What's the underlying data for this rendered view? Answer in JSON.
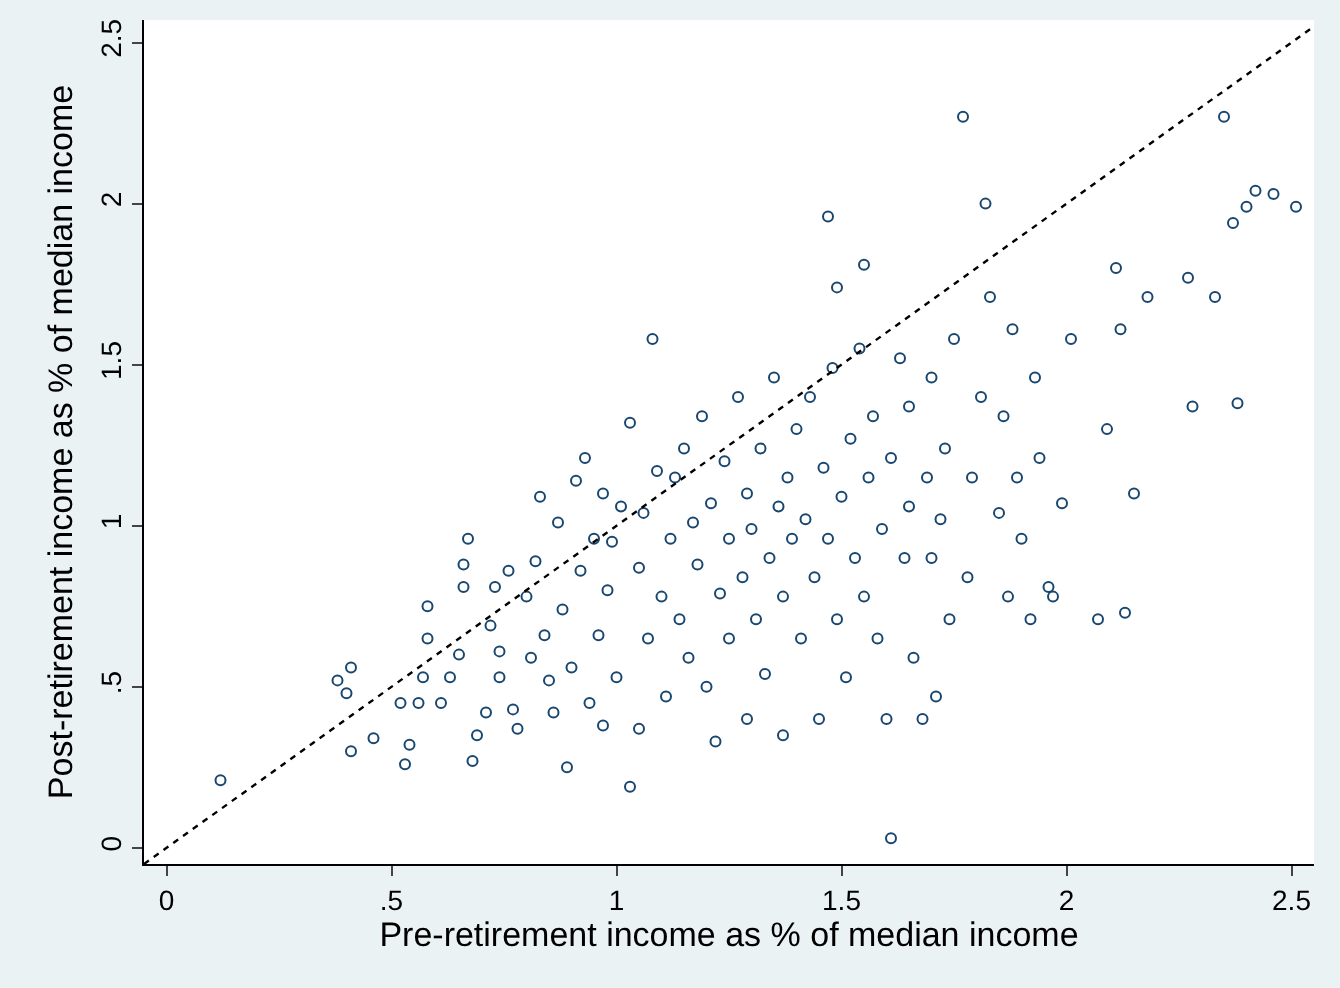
{
  "chart_data": {
    "type": "scatter",
    "xlabel": "Pre-retirement income as % of median income",
    "ylabel": "Post-retirement income as % of median income",
    "xlim": [
      -0.05,
      2.55
    ],
    "ylim": [
      -0.05,
      2.57
    ],
    "xticks": [
      0,
      {
        "value": 0.5,
        "label": ".5"
      },
      1,
      1.5,
      2,
      2.5
    ],
    "yticks": [
      0,
      {
        "value": 0.5,
        "label": ".5"
      },
      1,
      1.5,
      2,
      2.5
    ],
    "grid": false,
    "marker": "circle",
    "series": [
      {
        "color": "#1a476f",
        "x": [
          0.12,
          0.38,
          0.4,
          0.41,
          0.41,
          0.46,
          0.52,
          0.53,
          0.54,
          0.56,
          0.57,
          0.58,
          0.58,
          0.61,
          0.63,
          0.65,
          0.66,
          0.67,
          0.66,
          0.68,
          0.69,
          0.71,
          0.72,
          0.73,
          0.74,
          0.74,
          0.76,
          0.77,
          0.78,
          0.8,
          0.81,
          0.82,
          0.83,
          0.84,
          0.85,
          0.86,
          0.87,
          0.88,
          0.89,
          0.9,
          0.91,
          0.92,
          0.93,
          0.94,
          0.95,
          0.96,
          0.97,
          0.97,
          0.98,
          0.99,
          1.0,
          1.01,
          1.03,
          1.03,
          1.05,
          1.05,
          1.06,
          1.07,
          1.08,
          1.09,
          1.1,
          1.11,
          1.12,
          1.13,
          1.14,
          1.15,
          1.16,
          1.17,
          1.18,
          1.19,
          1.2,
          1.21,
          1.22,
          1.23,
          1.24,
          1.25,
          1.25,
          1.27,
          1.28,
          1.29,
          1.29,
          1.3,
          1.31,
          1.32,
          1.33,
          1.34,
          1.35,
          1.36,
          1.37,
          1.37,
          1.38,
          1.39,
          1.4,
          1.41,
          1.42,
          1.43,
          1.44,
          1.45,
          1.46,
          1.47,
          1.48,
          1.49,
          1.49,
          1.5,
          1.51,
          1.52,
          1.53,
          1.54,
          1.55,
          1.56,
          1.57,
          1.58,
          1.59,
          1.6,
          1.61,
          1.61,
          1.63,
          1.64,
          1.65,
          1.65,
          1.66,
          1.68,
          1.69,
          1.7,
          1.7,
          1.71,
          1.72,
          1.73,
          1.74,
          1.75,
          1.77,
          1.78,
          1.79,
          1.81,
          1.82,
          1.83,
          1.85,
          1.86,
          1.87,
          1.88,
          1.89,
          1.9,
          1.92,
          1.93,
          1.94,
          1.96,
          1.97,
          1.99,
          2.01,
          2.07,
          2.09,
          2.11,
          2.12,
          2.13,
          2.15,
          2.18,
          2.27,
          2.28,
          2.33,
          2.35,
          2.37,
          2.38,
          2.4,
          2.42,
          2.46,
          2.51,
          1.47,
          1.55
        ],
        "values": [
          0.21,
          0.52,
          0.48,
          0.3,
          0.56,
          0.34,
          0.45,
          0.26,
          0.32,
          0.45,
          0.53,
          0.65,
          0.75,
          0.45,
          0.53,
          0.6,
          0.81,
          0.96,
          0.88,
          0.27,
          0.35,
          0.42,
          0.69,
          0.81,
          0.61,
          0.53,
          0.86,
          0.43,
          0.37,
          0.78,
          0.59,
          0.89,
          1.09,
          0.66,
          0.52,
          0.42,
          1.01,
          0.74,
          0.25,
          0.56,
          1.14,
          0.86,
          1.21,
          0.45,
          0.96,
          0.66,
          1.1,
          0.38,
          0.8,
          0.95,
          0.53,
          1.06,
          0.19,
          1.32,
          0.37,
          0.87,
          1.04,
          0.65,
          1.58,
          1.17,
          0.78,
          0.47,
          0.96,
          1.15,
          0.71,
          1.24,
          0.59,
          1.01,
          0.88,
          1.34,
          0.5,
          1.07,
          0.33,
          0.79,
          1.2,
          0.96,
          0.65,
          1.4,
          0.84,
          1.1,
          0.4,
          0.99,
          0.71,
          1.24,
          0.54,
          0.9,
          1.46,
          1.06,
          0.78,
          0.35,
          1.15,
          0.96,
          1.3,
          0.65,
          1.02,
          1.4,
          0.84,
          0.4,
          1.18,
          0.96,
          1.49,
          0.71,
          1.74,
          1.09,
          0.53,
          1.27,
          0.9,
          1.55,
          0.78,
          1.15,
          1.34,
          0.65,
          0.99,
          0.4,
          0.03,
          1.21,
          1.52,
          0.9,
          1.06,
          1.37,
          0.59,
          0.4,
          1.15,
          1.46,
          0.9,
          0.47,
          1.02,
          1.24,
          0.71,
          1.58,
          2.27,
          0.84,
          1.15,
          1.4,
          2.0,
          1.71,
          1.04,
          1.34,
          0.78,
          1.61,
          1.15,
          0.96,
          0.71,
          1.46,
          1.21,
          0.81,
          0.78,
          1.07,
          1.58,
          0.71,
          1.3,
          1.8,
          1.61,
          0.73,
          1.1,
          1.71,
          1.77,
          1.37,
          1.71,
          2.27,
          1.94,
          1.38,
          1.99,
          2.04,
          2.03,
          1.99,
          1.96,
          1.81
        ]
      },
      {
        "type": "line",
        "color": "#000000",
        "line_style": "dotted",
        "marker": "none",
        "x": [
          -0.05,
          2.55
        ],
        "values": [
          -0.05,
          2.55
        ]
      }
    ]
  }
}
